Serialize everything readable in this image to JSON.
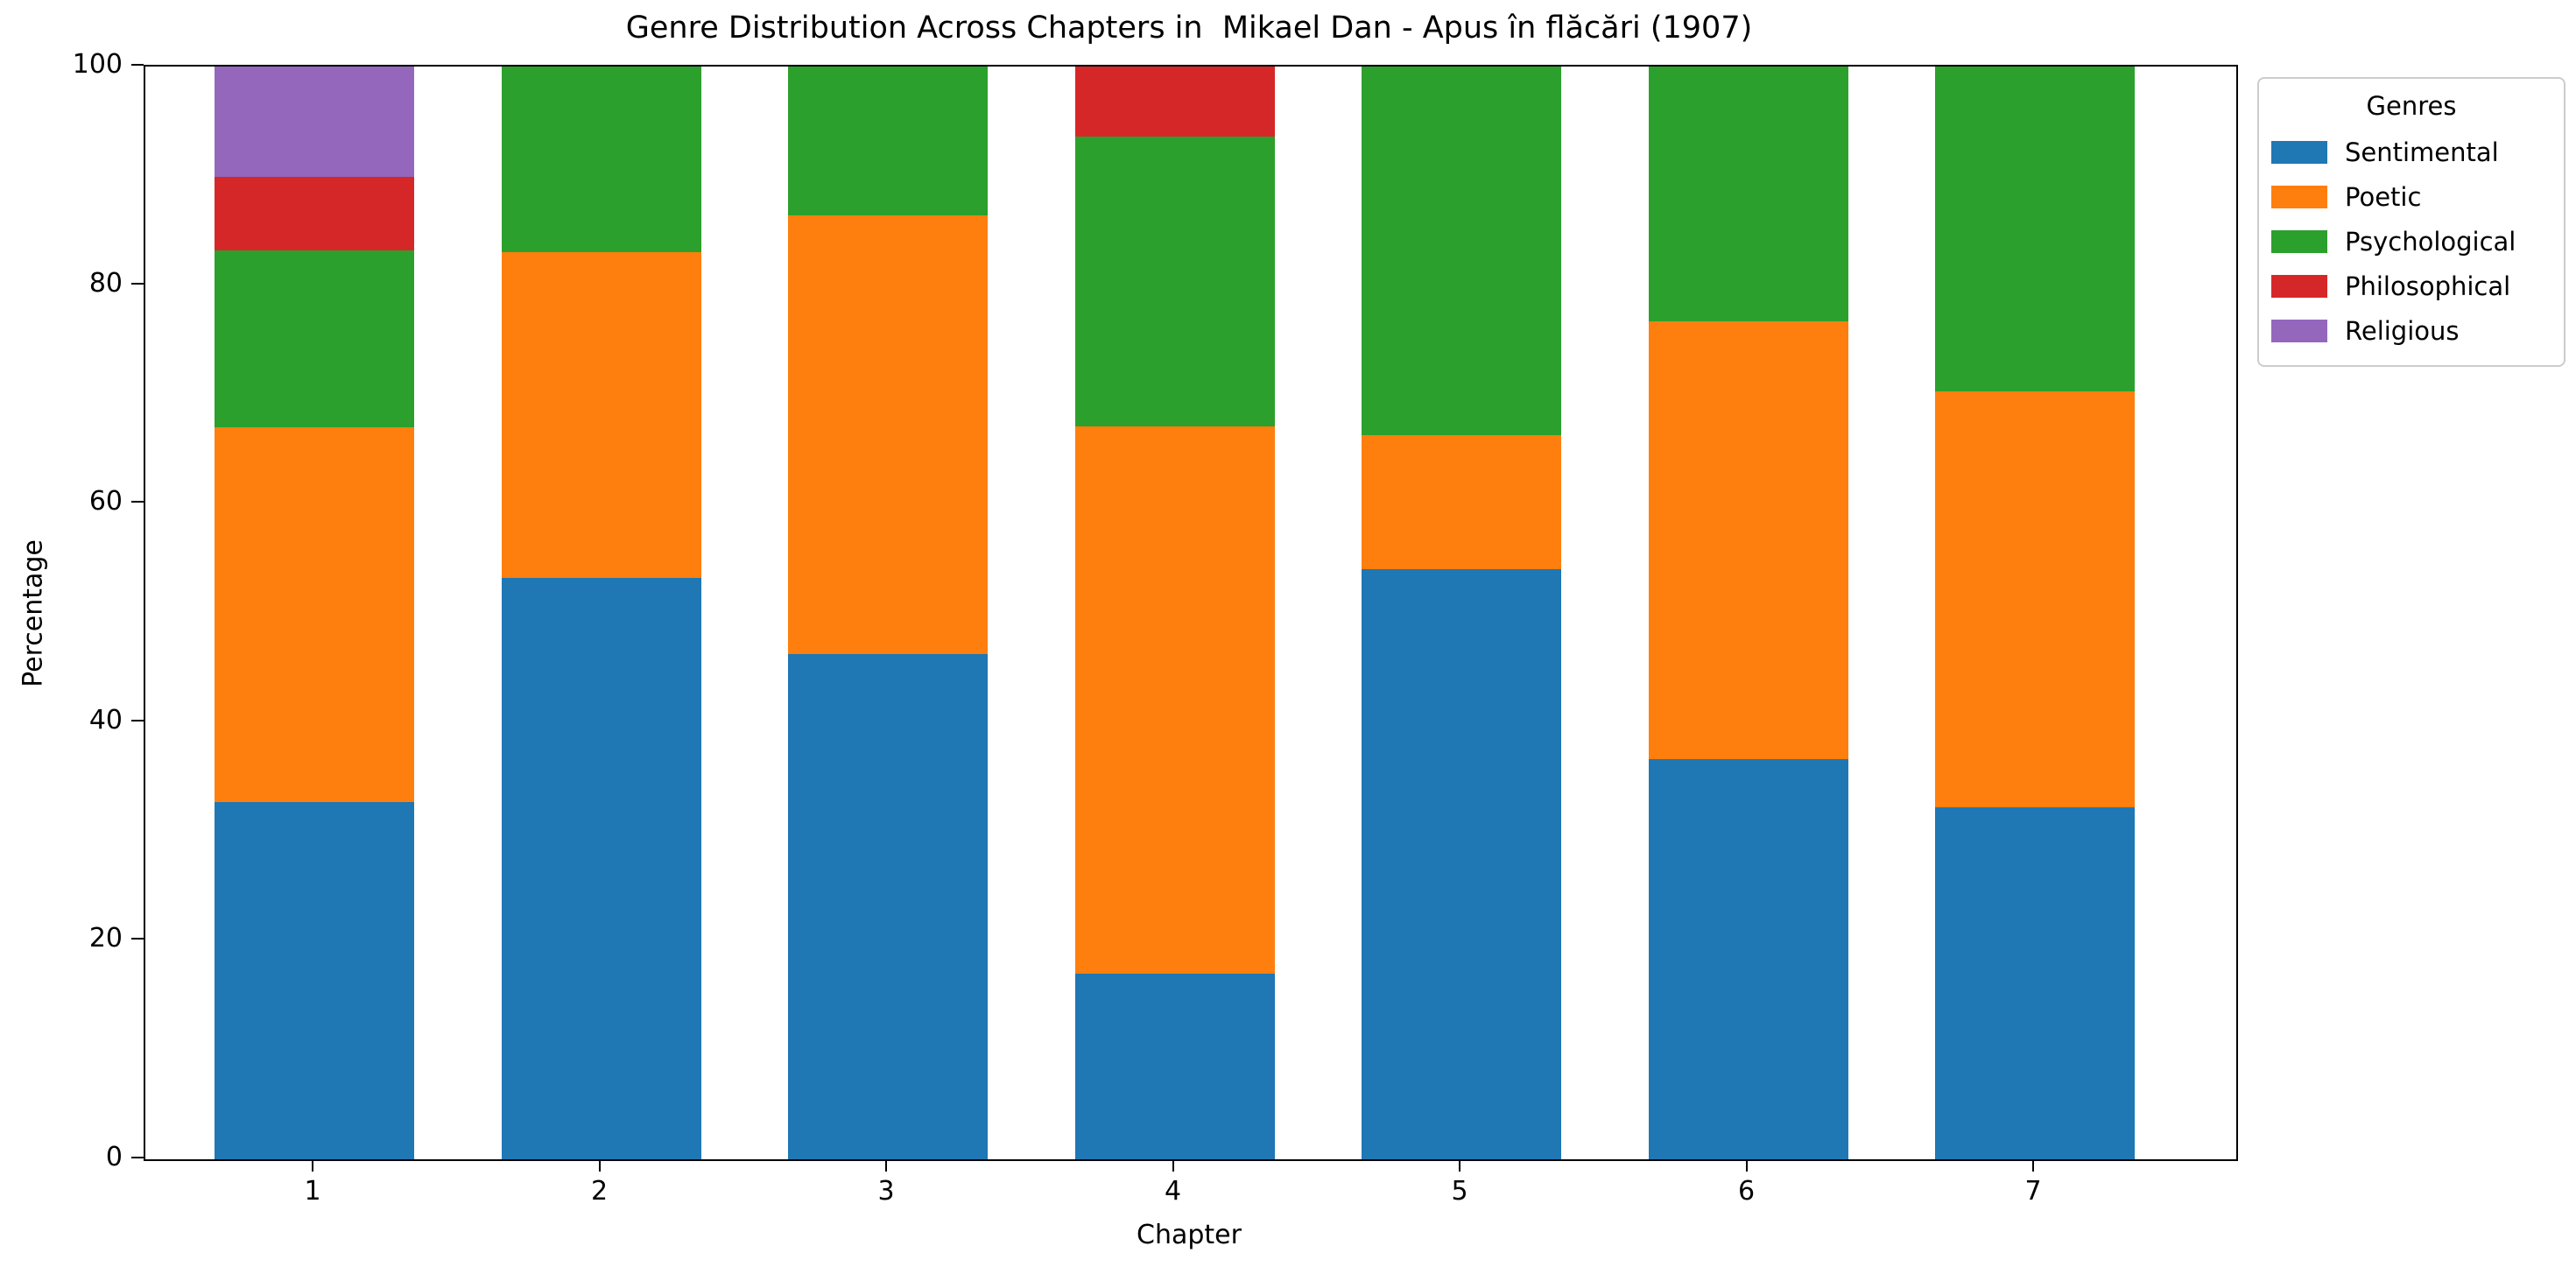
{
  "chart_data": {
    "type": "bar",
    "stacked": true,
    "orientation": "vertical",
    "title": "Genre Distribution Across Chapters in  Mikael Dan - Apus în flăcări (1907)",
    "xlabel": "Chapter",
    "ylabel": "Percentage",
    "categories": [
      "1",
      "2",
      "3",
      "4",
      "5",
      "6",
      "7"
    ],
    "series": [
      {
        "name": "Sentimental",
        "color": "#1f77b4",
        "values": [
          32.7,
          53.2,
          46.2,
          17.0,
          54.0,
          36.6,
          32.2
        ]
      },
      {
        "name": "Poetic",
        "color": "#ff7f0e",
        "values": [
          34.3,
          29.8,
          40.2,
          50.1,
          12.3,
          40.1,
          38.1
        ]
      },
      {
        "name": "Psychological",
        "color": "#2ca02c",
        "values": [
          16.2,
          17.0,
          13.6,
          26.5,
          33.7,
          23.3,
          29.7
        ]
      },
      {
        "name": "Philosophical",
        "color": "#d62728",
        "values": [
          6.7,
          0,
          0,
          6.4,
          0,
          0,
          0
        ]
      },
      {
        "name": "Religious",
        "color": "#9467bd",
        "values": [
          10.1,
          0,
          0,
          0,
          0,
          0,
          0
        ]
      }
    ],
    "ylim": [
      0,
      100
    ],
    "yticks": [
      0,
      20,
      40,
      60,
      80,
      100
    ],
    "grid": false,
    "legend": {
      "title": "Genres",
      "position": "outside-right-top"
    },
    "axis_color": "#000000",
    "background_color": "#ffffff"
  }
}
